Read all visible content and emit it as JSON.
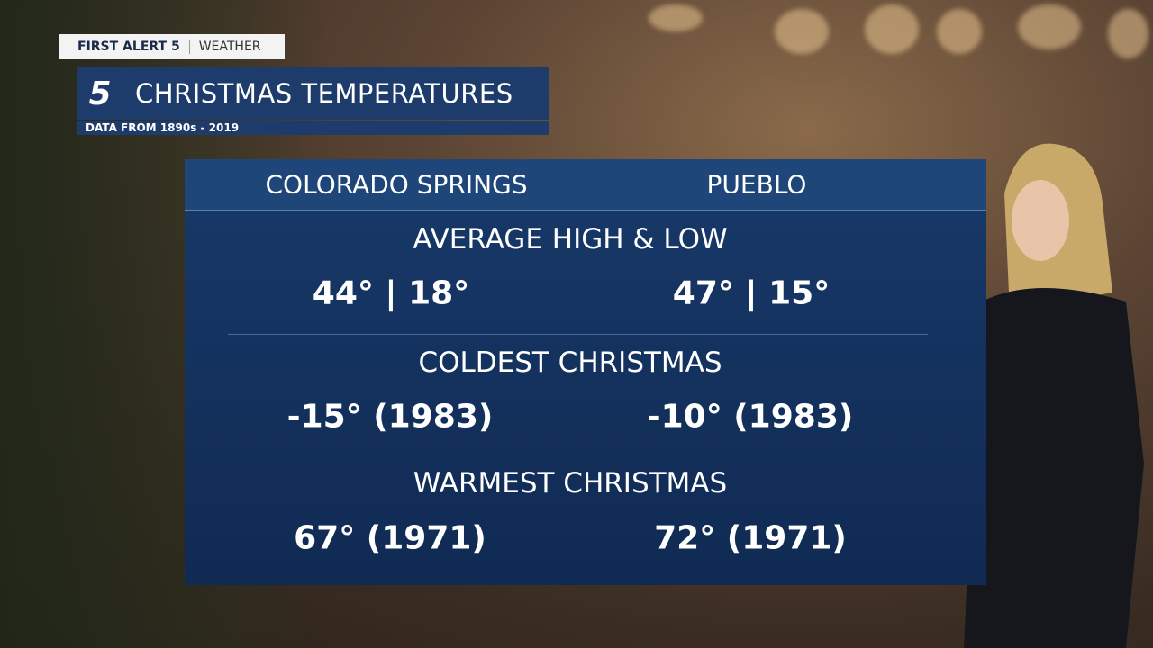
{
  "header": {
    "brand": "FIRST ALERT 5",
    "section": "WEATHER",
    "logo": "5",
    "title": "CHRISTMAS TEMPERATURES",
    "subtitle": "DATA FROM 1890s - 2019"
  },
  "table": {
    "columns": [
      "COLORADO SPRINGS",
      "PUEBLO"
    ],
    "sections": [
      {
        "label": "AVERAGE HIGH & LOW",
        "values": [
          "44° | 18°",
          "47° | 15°"
        ]
      },
      {
        "label": "COLDEST CHRISTMAS",
        "values": [
          "-15° (1983)",
          "-10° (1983)"
        ]
      },
      {
        "label": "WARMEST CHRISTMAS",
        "values": [
          "67° (1971)",
          "72° (1971)"
        ]
      }
    ]
  }
}
